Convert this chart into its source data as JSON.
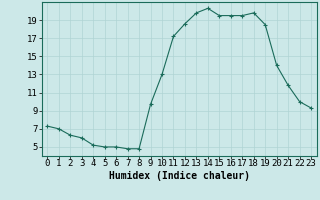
{
  "x": [
    0,
    1,
    2,
    3,
    4,
    5,
    6,
    7,
    8,
    9,
    10,
    11,
    12,
    13,
    14,
    15,
    16,
    17,
    18,
    19,
    20,
    21,
    22,
    23
  ],
  "y": [
    7.3,
    7.0,
    6.3,
    6.0,
    5.2,
    5.0,
    5.0,
    4.8,
    4.8,
    9.7,
    13.0,
    17.2,
    18.6,
    19.8,
    20.3,
    19.5,
    19.5,
    19.5,
    19.8,
    18.5,
    14.0,
    11.8,
    10.0,
    9.3
  ],
  "xlabel": "Humidex (Indice chaleur)",
  "xlim": [
    -0.5,
    23.5
  ],
  "ylim": [
    4.0,
    21.0
  ],
  "yticks": [
    5,
    7,
    9,
    11,
    13,
    15,
    17,
    19
  ],
  "xticks": [
    0,
    1,
    2,
    3,
    4,
    5,
    6,
    7,
    8,
    9,
    10,
    11,
    12,
    13,
    14,
    15,
    16,
    17,
    18,
    19,
    20,
    21,
    22,
    23
  ],
  "xtick_labels": [
    "0",
    "1",
    "2",
    "3",
    "4",
    "5",
    "6",
    "7",
    "8",
    "9",
    "10",
    "11",
    "12",
    "13",
    "14",
    "15",
    "16",
    "17",
    "18",
    "19",
    "20",
    "21",
    "22",
    "23"
  ],
  "line_color": "#1a6b5a",
  "marker": "+",
  "bg_color": "#cce8e8",
  "grid_color": "#b0d4d4",
  "label_fontsize": 7,
  "tick_fontsize": 6.5
}
